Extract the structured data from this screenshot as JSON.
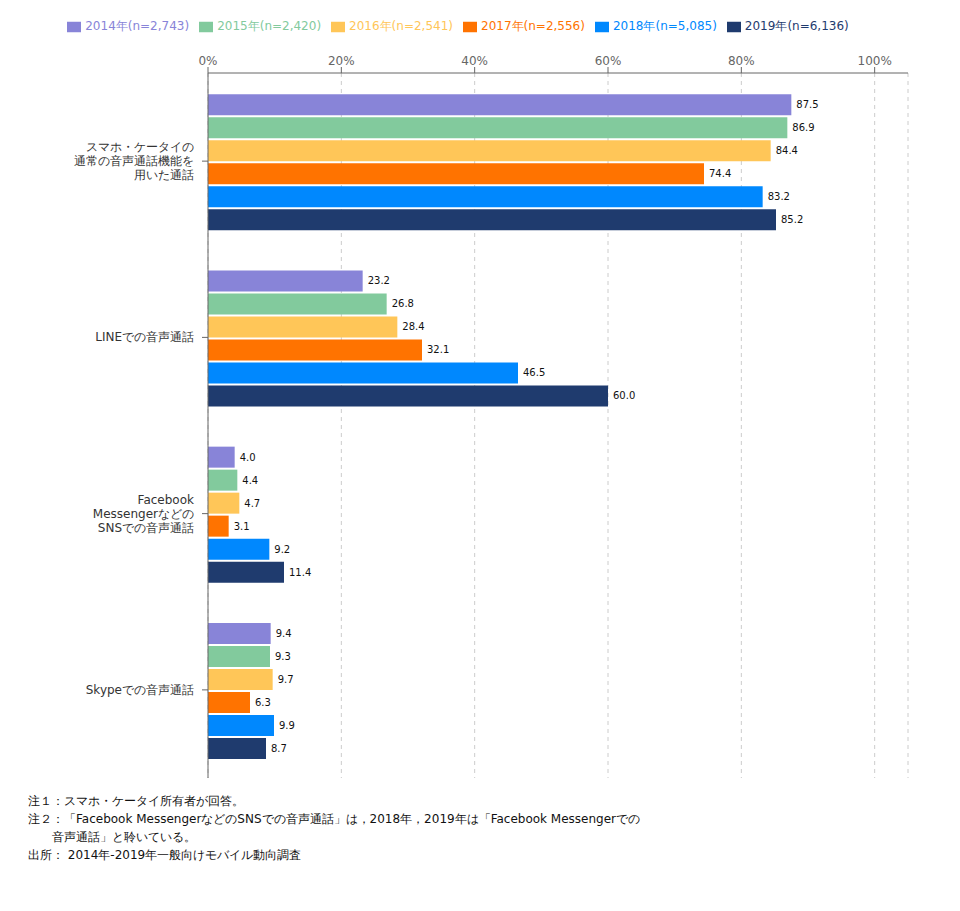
{
  "chart_data": {
    "type": "bar",
    "orientation": "horizontal",
    "categories": [
      "スマホ・ケータイの\n通常の音声通話機能を\n用いた通話",
      "LINEでの音声通話",
      "Facebook\nMessengerなどの\nSNSでの音声通話",
      "Skypeでの音声通話"
    ],
    "series": [
      {
        "name": "2014年(n=2,743)",
        "color": "#8884d8",
        "values": [
          87.5,
          23.2,
          4.0,
          9.4
        ],
        "value_labels": [
          "87.5",
          "23.2",
          "4.0",
          "9.4"
        ]
      },
      {
        "name": "2015年(n=2,420)",
        "color": "#82ca9d",
        "values": [
          86.9,
          26.8,
          4.4,
          9.3
        ],
        "value_labels": [
          "86.9",
          "26.8",
          "4.4",
          "9.3"
        ]
      },
      {
        "name": "2016年(n=2,541)",
        "color": "#ffc658",
        "values": [
          84.4,
          28.4,
          4.7,
          9.7
        ],
        "value_labels": [
          "84.4",
          "28.4",
          "4.7",
          "9.7"
        ]
      },
      {
        "name": "2017年(n=2,556)",
        "color": "#ff7300",
        "values": [
          74.4,
          32.1,
          3.1,
          6.3
        ],
        "value_labels": [
          "74.4",
          "32.1",
          "3.1",
          "6.3"
        ]
      },
      {
        "name": "2018年(n=5,085)",
        "color": "#0088fe",
        "values": [
          83.2,
          46.5,
          9.2,
          9.9
        ],
        "value_labels": [
          "83.2",
          "46.5",
          "9.2",
          "9.9"
        ]
      },
      {
        "name": "2019年(n=6,136)",
        "color": "#1f3b6e",
        "values": [
          85.2,
          60.0,
          11.4,
          8.7
        ],
        "value_labels": [
          "85.2",
          "60.0",
          "11.4",
          "8.7"
        ]
      }
    ],
    "xlim": [
      0,
      105
    ],
    "xticks": [
      {
        "value": 0,
        "label": "0%"
      },
      {
        "value": 20,
        "label": "20%"
      },
      {
        "value": 40,
        "label": "40%"
      },
      {
        "value": 60,
        "label": "60%"
      },
      {
        "value": 80,
        "label": "80%"
      },
      {
        "value": 100,
        "label": "100%"
      }
    ],
    "grid": true,
    "data_labels": true,
    "legend": "top",
    "annotations": [
      "注１：スマホ・ケータイ所有者が回答。",
      "注２：「Facebook MessengerなどのSNSでの音声通話」は，2018年，2019年は「Facebook Messengerでの",
      "　　音声通話」と聆いている。",
      "出所： 2014年-2019年一般向けモバイル動向調査"
    ]
  }
}
